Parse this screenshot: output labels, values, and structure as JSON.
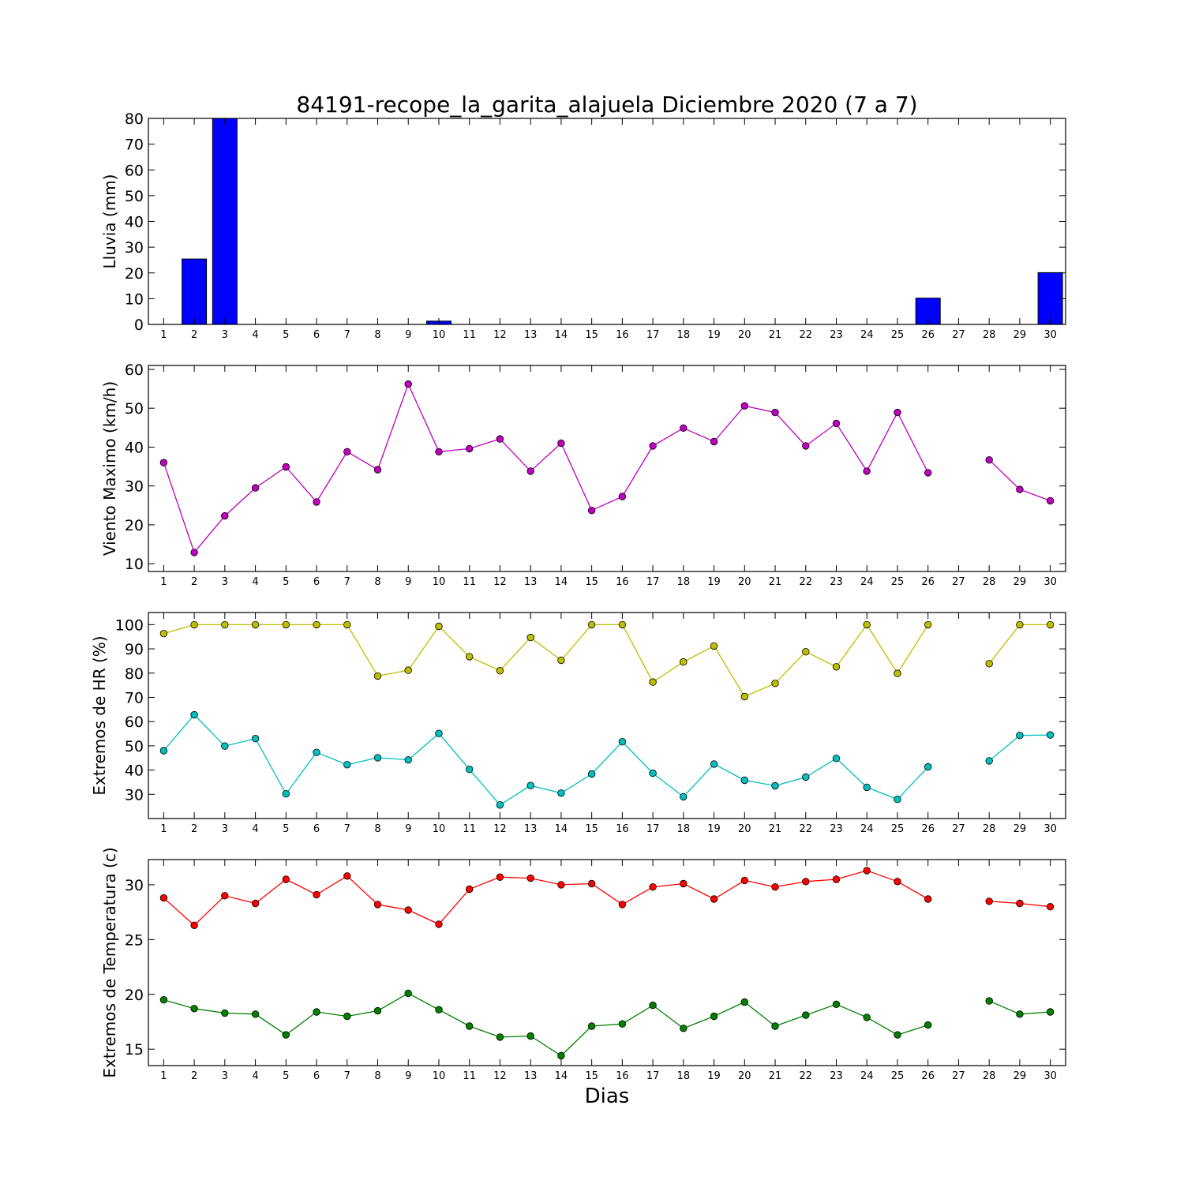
{
  "title": "84191-recope_la_garita_alajuela Diciembre 2020  (7 a 7)",
  "xlabel": "Dias",
  "chart_data": [
    {
      "type": "bar",
      "ylabel": "Lluvia (mm)",
      "ylim": [
        0,
        80
      ],
      "yticks": [
        0,
        10,
        20,
        30,
        40,
        50,
        60,
        70,
        80
      ],
      "categories": [
        "1",
        "2",
        "3",
        "4",
        "5",
        "6",
        "7",
        "8",
        "9",
        "10",
        "11",
        "12",
        "13",
        "14",
        "15",
        "16",
        "17",
        "18",
        "19",
        "20",
        "21",
        "22",
        "23",
        "24",
        "25",
        "26",
        "27",
        "28",
        "29",
        "30"
      ],
      "series": [
        {
          "color": "#0000ff",
          "values": [
            0,
            25.4,
            80,
            0,
            0,
            0,
            0,
            0,
            0,
            1.3,
            0,
            0,
            0,
            0,
            0,
            0,
            0,
            0,
            0,
            0,
            0,
            0,
            0,
            0,
            0,
            10.2,
            null,
            0,
            0,
            20.1
          ]
        }
      ]
    },
    {
      "type": "line",
      "ylabel": "Viento Maximo (km/h)",
      "ylim": [
        8,
        61
      ],
      "yticks": [
        10,
        20,
        30,
        40,
        50,
        60
      ],
      "categories": [
        "1",
        "2",
        "3",
        "4",
        "5",
        "6",
        "7",
        "8",
        "9",
        "10",
        "11",
        "12",
        "13",
        "14",
        "15",
        "16",
        "17",
        "18",
        "19",
        "20",
        "21",
        "22",
        "23",
        "24",
        "25",
        "26",
        "27",
        "28",
        "29",
        "30"
      ],
      "series": [
        {
          "color": "#bf00bf",
          "values": [
            36,
            12.9,
            22.3,
            29.5,
            34.9,
            25.9,
            38.8,
            34.2,
            56.2,
            38.8,
            39.6,
            42.1,
            33.8,
            41,
            23.7,
            27.3,
            40.3,
            44.9,
            41.4,
            50.6,
            48.9,
            40.3,
            46.1,
            33.8,
            48.9,
            33.4,
            null,
            36.7,
            29.1,
            26.2
          ]
        }
      ]
    },
    {
      "type": "line",
      "ylabel": "Extremos de HR (%)",
      "ylim": [
        20,
        105
      ],
      "yticks": [
        30,
        40,
        50,
        60,
        70,
        80,
        90,
        100
      ],
      "categories": [
        "1",
        "2",
        "3",
        "4",
        "5",
        "6",
        "7",
        "8",
        "9",
        "10",
        "11",
        "12",
        "13",
        "14",
        "15",
        "16",
        "17",
        "18",
        "19",
        "20",
        "21",
        "22",
        "23",
        "24",
        "25",
        "26",
        "27",
        "28",
        "29",
        "30"
      ],
      "series": [
        {
          "color": "#bfbf00",
          "values": [
            96.3,
            100,
            100,
            100,
            100,
            100,
            100,
            78.8,
            81.2,
            99.3,
            86.8,
            81,
            94.7,
            85.3,
            100,
            100,
            76.3,
            84.6,
            91.2,
            70.3,
            75.8,
            88.8,
            82.6,
            100,
            79.9,
            100,
            null,
            83.9,
            100,
            100
          ]
        },
        {
          "color": "#00bfbf",
          "values": [
            48,
            62.8,
            49.9,
            53,
            30.2,
            47.3,
            42.2,
            45.1,
            44.2,
            55.1,
            40.3,
            25.6,
            33.6,
            30.5,
            38.4,
            51.7,
            38.7,
            29,
            42.5,
            35.8,
            33.5,
            37.1,
            44.8,
            32.9,
            27.9,
            41.3,
            null,
            43.8,
            54.3,
            54.5
          ]
        }
      ]
    },
    {
      "type": "line",
      "ylabel": "Extremos de Temperatura (c)",
      "ylim": [
        13.5,
        32.3
      ],
      "yticks": [
        15,
        20,
        25,
        30
      ],
      "categories": [
        "1",
        "2",
        "3",
        "4",
        "5",
        "6",
        "7",
        "8",
        "9",
        "10",
        "11",
        "12",
        "13",
        "14",
        "15",
        "16",
        "17",
        "18",
        "19",
        "20",
        "21",
        "22",
        "23",
        "24",
        "25",
        "26",
        "27",
        "28",
        "29",
        "30"
      ],
      "series": [
        {
          "color": "#ff0000",
          "values": [
            28.8,
            26.3,
            29,
            28.3,
            30.5,
            29.1,
            30.8,
            28.2,
            27.7,
            26.4,
            29.6,
            30.7,
            30.6,
            30,
            30.1,
            28.2,
            29.8,
            30.1,
            28.7,
            30.4,
            29.8,
            30.3,
            30.5,
            31.3,
            30.3,
            28.7,
            null,
            28.5,
            28.3,
            28
          ]
        },
        {
          "color": "#008000",
          "values": [
            19.5,
            18.7,
            18.3,
            18.2,
            16.3,
            18.4,
            18,
            18.5,
            20.1,
            18.6,
            17.1,
            16.1,
            16.2,
            14.4,
            17.1,
            17.3,
            19,
            16.9,
            18,
            19.3,
            17.1,
            18.1,
            19.1,
            17.9,
            16.3,
            17.2,
            null,
            19.4,
            18.2,
            18.4
          ]
        }
      ]
    }
  ]
}
